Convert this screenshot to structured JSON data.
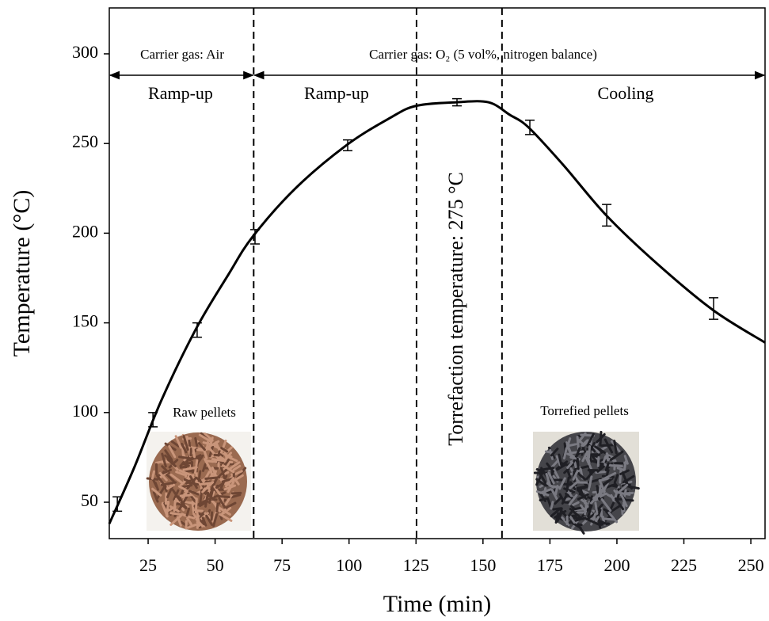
{
  "chart_data": {
    "type": "line",
    "xlabel": "Time (min)",
    "ylabel": "Temperature (°C)",
    "xlim": [
      10.5,
      255.3
    ],
    "ylim": [
      29.7,
      325.6
    ],
    "xticks": [
      25,
      50,
      75,
      100,
      125,
      150,
      175,
      200,
      225,
      250
    ],
    "yticks": [
      50,
      100,
      150,
      200,
      250,
      300
    ],
    "series": [
      {
        "color": "#000000",
        "x": [
          10.5,
          20,
          30,
          43,
          55,
          64,
          80,
          99,
          115,
          125,
          140,
          152,
          160,
          167,
          180,
          196,
          215,
          236,
          255.3
        ],
        "values": [
          38,
          70,
          107,
          147,
          177,
          198,
          225,
          249,
          264,
          271,
          273,
          273,
          266,
          259,
          238,
          210,
          183,
          157,
          139
        ]
      },
      {
        "color": "#000000",
        "x": [
          13.5,
          26.8,
          43.3,
          64.9,
          99.5,
          140.3,
          167.5,
          196.2,
          236.1
        ],
        "values": [
          49,
          96,
          146,
          198,
          249,
          273,
          259,
          210,
          158
        ],
        "errors": [
          4,
          4,
          4,
          4,
          3,
          2,
          4,
          6,
          6
        ]
      }
    ],
    "vlines": [
      64.4,
      125.2,
      157.1
    ],
    "annotations": [
      "Carrier gas: Air",
      "Carrier gas: O₂ (5 vol%, nitrogen balance)",
      "Ramp-up",
      "Ramp-up",
      "Cooling",
      "Torrefaction temperature: 275 °C",
      "Raw pellets",
      "Torrefied pellets"
    ]
  }
}
